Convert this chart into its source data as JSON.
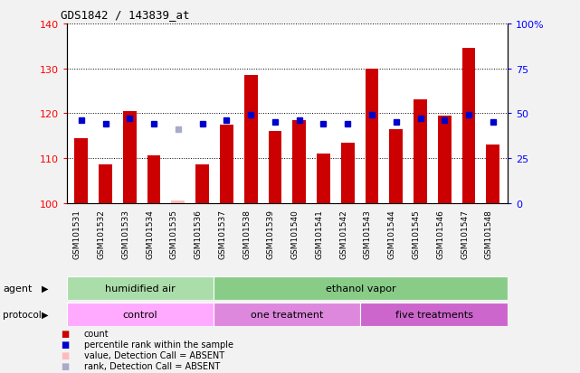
{
  "title": "GDS1842 / 143839_at",
  "samples": [
    "GSM101531",
    "GSM101532",
    "GSM101533",
    "GSM101534",
    "GSM101535",
    "GSM101536",
    "GSM101537",
    "GSM101538",
    "GSM101539",
    "GSM101540",
    "GSM101541",
    "GSM101542",
    "GSM101543",
    "GSM101544",
    "GSM101545",
    "GSM101546",
    "GSM101547",
    "GSM101548"
  ],
  "count_values": [
    114.5,
    108.5,
    120.5,
    110.5,
    100.5,
    108.5,
    117.5,
    128.5,
    116.0,
    118.5,
    111.0,
    113.5,
    130.0,
    116.5,
    123.0,
    119.5,
    134.5,
    113.0
  ],
  "rank_values": [
    46,
    44,
    47,
    44,
    41,
    44,
    46,
    49,
    45,
    46,
    44,
    44,
    49,
    45,
    47,
    46,
    49,
    45
  ],
  "absent_mask": [
    false,
    false,
    false,
    false,
    true,
    false,
    false,
    false,
    false,
    false,
    false,
    false,
    false,
    false,
    false,
    false,
    false,
    false
  ],
  "ylim_left": [
    100,
    140
  ],
  "ylim_right": [
    0,
    100
  ],
  "yticks_left": [
    100,
    110,
    120,
    130,
    140
  ],
  "yticks_right": [
    0,
    25,
    50,
    75,
    100
  ],
  "ytick_labels_left": [
    "100",
    "110",
    "120",
    "130",
    "140"
  ],
  "ytick_labels_right": [
    "0",
    "25",
    "50",
    "75",
    "100%"
  ],
  "bar_color": "#cc0000",
  "absent_bar_color": "#ffbbbb",
  "rank_color": "#0000cc",
  "absent_rank_color": "#aaaacc",
  "plot_bg": "#ffffff",
  "tick_area_bg": "#c8c8c8",
  "fig_bg": "#f2f2f2",
  "agent_groups": [
    {
      "label": "humidified air",
      "start": 0,
      "end": 6,
      "color": "#aaddaa"
    },
    {
      "label": "ethanol vapor",
      "start": 6,
      "end": 18,
      "color": "#88cc88"
    }
  ],
  "protocol_colors": [
    "#ffaaff",
    "#dd88dd",
    "#cc66cc"
  ],
  "protocol_groups": [
    {
      "label": "control",
      "start": 0,
      "end": 6
    },
    {
      "label": "one treatment",
      "start": 6,
      "end": 12
    },
    {
      "label": "five treatments",
      "start": 12,
      "end": 18
    }
  ],
  "legend_items": [
    {
      "label": "count",
      "color": "#cc0000"
    },
    {
      "label": "percentile rank within the sample",
      "color": "#0000cc"
    },
    {
      "label": "value, Detection Call = ABSENT",
      "color": "#ffbbbb"
    },
    {
      "label": "rank, Detection Call = ABSENT",
      "color": "#aaaacc"
    }
  ]
}
